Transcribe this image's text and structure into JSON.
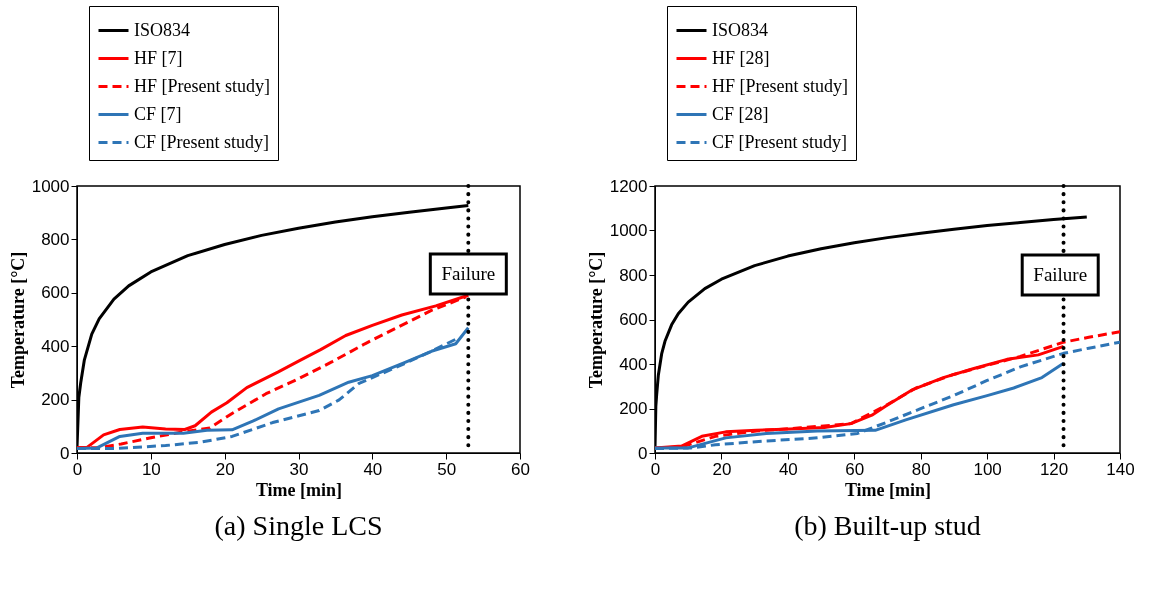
{
  "chart_data": [
    {
      "type": "line",
      "title": "(a) Single LCS",
      "xlabel": "Time [min]",
      "ylabel": "Temperature [°C]",
      "xlim": [
        0,
        60
      ],
      "xticks": [
        0,
        10,
        20,
        30,
        40,
        50,
        60
      ],
      "ylim": [
        0,
        1000
      ],
      "yticks": [
        0,
        200,
        400,
        600,
        800,
        1000
      ],
      "legend": "top left",
      "series": [
        {
          "name": "ISO834",
          "color": "#000000",
          "line_style": "solid",
          "x": [
            0,
            0.25,
            0.5,
            1,
            2,
            3,
            5,
            7,
            10,
            15,
            20,
            25,
            30,
            35,
            40,
            45,
            50,
            53
          ],
          "values": [
            20,
            209,
            262,
            349,
            445,
            502,
            576,
            626,
            678,
            739,
            781,
            815,
            842,
            865,
            885,
            902,
            918,
            927
          ]
        },
        {
          "name": "HF [7]",
          "color": "#ff0000",
          "line_style": "solid",
          "x": [
            0,
            1.4,
            3.6,
            5.8,
            8.9,
            12,
            14.6,
            16,
            18.2,
            20.3,
            23,
            27.2,
            30.2,
            33,
            36.4,
            40,
            44,
            48.6,
            53
          ],
          "values": [
            20,
            22,
            68,
            88,
            97,
            90,
            88,
            102,
            153,
            188,
            245,
            303,
            347,
            387,
            440,
            478,
            517,
            551,
            591
          ]
        },
        {
          "name": "HF [Present study]",
          "color": "#ff0000",
          "line_style": "dashed",
          "x": [
            0,
            3,
            6,
            10,
            14.5,
            18,
            21,
            25.6,
            30,
            34.5,
            39,
            43.5,
            48,
            52.7
          ],
          "values": [
            20,
            20,
            34,
            57,
            80,
            94,
            148,
            222,
            278,
            341,
            409,
            472,
            534,
            585
          ]
        },
        {
          "name": "CF [7]",
          "color": "#2e75b6",
          "line_style": "solid",
          "x": [
            0,
            2.7,
            5.8,
            8.9,
            14.4,
            17.6,
            21,
            23.8,
            27.3,
            32.8,
            36.8,
            40,
            44.6,
            48,
            51.3,
            53
          ],
          "values": [
            17,
            19,
            62,
            74,
            74,
            85,
            87,
            119,
            165,
            216,
            265,
            290,
            341,
            381,
            409,
            469
          ]
        },
        {
          "name": "CF [Present study]",
          "color": "#2e75b6",
          "line_style": "dashed",
          "x": [
            0,
            5.4,
            12,
            16.6,
            21,
            26.5,
            32.8,
            35.5,
            38.2,
            43.5,
            48,
            51.3
          ],
          "values": [
            17,
            17,
            28,
            40,
            62,
            114,
            159,
            199,
            261,
            324,
            381,
            426
          ]
        }
      ],
      "ref_lines": [
        {
          "axis": "x",
          "value": 53,
          "line_style": "dotted",
          "color": "#000000"
        }
      ],
      "annotations": [
        {
          "text": "Failure",
          "x": 53,
          "y": 670
        }
      ]
    },
    {
      "type": "line",
      "title": "(b) Built-up stud",
      "xlabel": "Time [min]",
      "ylabel": "Temperature [°C]",
      "xlim": [
        0,
        140
      ],
      "xticks": [
        0,
        20,
        40,
        60,
        80,
        100,
        120,
        140
      ],
      "ylim": [
        0,
        1200
      ],
      "yticks": [
        0,
        200,
        400,
        600,
        800,
        1000,
        1200
      ],
      "legend": "top left",
      "series": [
        {
          "name": "ISO834",
          "color": "#000000",
          "line_style": "solid",
          "x": [
            0,
            0.25,
            0.5,
            1,
            2,
            3,
            5,
            7,
            10,
            15,
            20,
            30,
            40,
            50,
            60,
            70,
            80,
            90,
            100,
            110,
            120,
            130
          ],
          "values": [
            20,
            209,
            262,
            349,
            445,
            502,
            576,
            626,
            678,
            739,
            781,
            842,
            885,
            918,
            945,
            968,
            988,
            1006,
            1022,
            1036,
            1049,
            1061
          ]
        },
        {
          "name": "HF [28]",
          "color": "#ff0000",
          "line_style": "solid",
          "x": [
            0,
            8,
            14.1,
            21.3,
            30.5,
            40.7,
            51,
            59,
            65.3,
            69.4,
            77.6,
            86.8,
            96,
            106,
            115.4,
            123
          ],
          "values": [
            23,
            31,
            75,
            95,
            102,
            108,
            115,
            132,
            170,
            210,
            285,
            339,
            380,
            421,
            441,
            479
          ]
        },
        {
          "name": "HF [Present study]",
          "color": "#ff0000",
          "line_style": "dashed",
          "x": [
            0,
            8,
            18.2,
            30.5,
            43.8,
            59,
            69.4,
            78.6,
            89.9,
            100,
            110,
            123,
            130.6,
            140
          ],
          "values": [
            23,
            27,
            75,
            99,
            113,
            132,
            213,
            292,
            353,
            394,
            434,
            498,
            520,
            545
          ]
        },
        {
          "name": "CF [28]",
          "color": "#2e75b6",
          "line_style": "solid",
          "x": [
            0,
            10,
            21.3,
            33.5,
            48.9,
            66.3,
            75.5,
            89.9,
            100,
            108,
            116.5,
            123
          ],
          "values": [
            23,
            23,
            68,
            88,
            99,
            102,
            149,
            217,
            258,
            292,
            339,
            403
          ]
        },
        {
          "name": "CF [Present study]",
          "color": "#2e75b6",
          "line_style": "dashed",
          "x": [
            0,
            11,
            18.2,
            33.5,
            48.9,
            61,
            69.4,
            79.6,
            89.9,
            100,
            110,
            123,
            130.6,
            140
          ],
          "values": [
            20,
            23,
            37,
            54,
            68,
            88,
            136,
            197,
            258,
            326,
            387,
            448,
            471,
            498
          ]
        }
      ],
      "ref_lines": [
        {
          "axis": "x",
          "value": 123,
          "line_style": "dotted",
          "color": "#000000"
        }
      ],
      "annotations": [
        {
          "text": "Failure",
          "x": 122,
          "y": 800
        }
      ]
    }
  ]
}
